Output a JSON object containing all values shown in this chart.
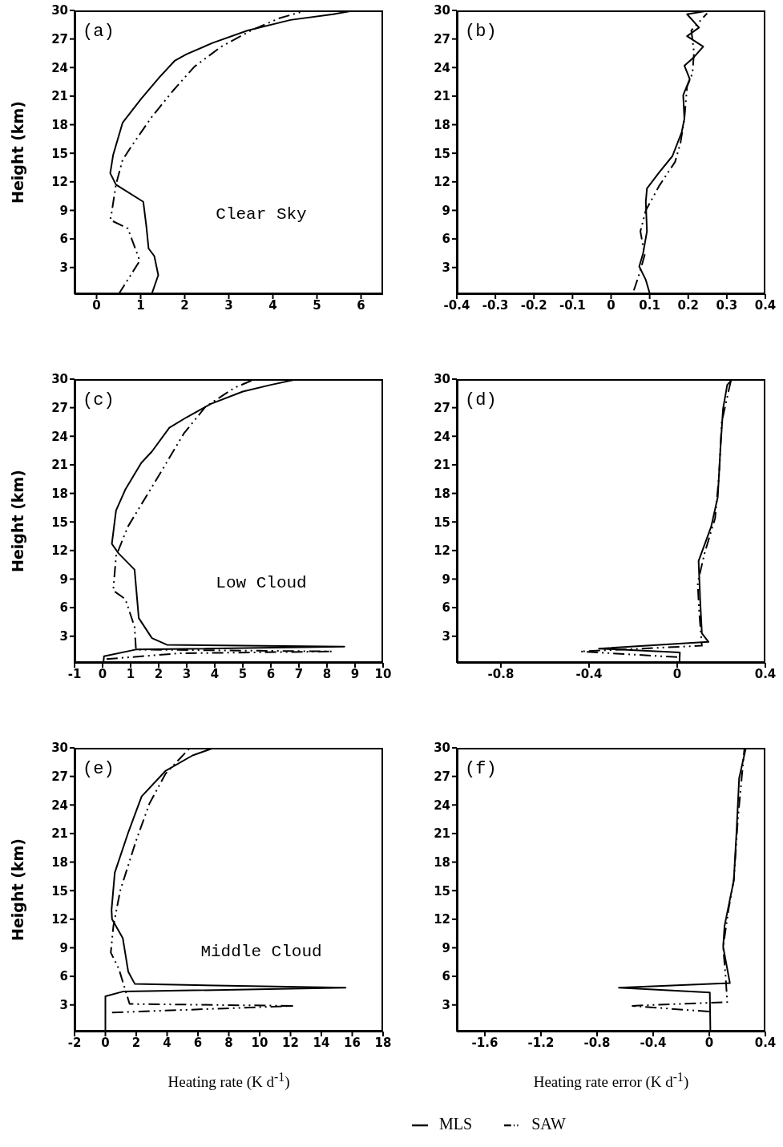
{
  "chart_data": [
    {
      "type": "line",
      "annotations": [
        "(a)",
        "Clear Sky"
      ],
      "ylabel": "Height (km)",
      "xlim": [
        -0.5,
        6.5
      ],
      "xticks": [
        0,
        1,
        2,
        3,
        4,
        5,
        6
      ],
      "ylim": [
        0.2,
        30
      ],
      "yticks": [
        3,
        6,
        9,
        12,
        15,
        18,
        21,
        24,
        27,
        30
      ],
      "series": [
        {
          "color": "#000000",
          "line_style": "solid",
          "x": [
            1.25,
            1.4,
            1.31,
            1.18,
            1.13,
            1.06,
            0.44,
            0.31,
            0.375,
            0.59,
            1.01,
            1.43,
            1.77,
            2.04,
            2.64,
            3.43,
            4.4,
            5.37,
            5.85
          ],
          "values": [
            0.2,
            2.2,
            4.2,
            5.0,
            7.3,
            9.9,
            11.7,
            12.9,
            14.8,
            18.2,
            20.7,
            23.0,
            24.7,
            25.4,
            26.6,
            27.9,
            29.0,
            29.6,
            30
          ]
        },
        {
          "color": "#000000",
          "line_style": "dashed",
          "x": [
            0.5,
            0.98,
            0.71,
            0.31,
            0.34,
            0.44,
            0.59,
            0.83,
            1.25,
            1.74,
            2.22,
            2.83,
            3.55,
            4.16,
            4.76
          ],
          "values": [
            0.2,
            3.7,
            7.1,
            8.0,
            8.7,
            11.7,
            14.3,
            16.0,
            18.8,
            21.6,
            24.1,
            26.2,
            28.0,
            29.2,
            30
          ]
        }
      ]
    },
    {
      "type": "line",
      "annotations": [
        "(b)"
      ],
      "xlim": [
        -0.4,
        0.4
      ],
      "xticks": [
        -0.4,
        -0.3,
        -0.2,
        -0.1,
        0,
        0.1,
        0.2,
        0.3,
        0.4
      ],
      "ylim": [
        0.2,
        30
      ],
      "yticks": [
        3,
        6,
        9,
        12,
        15,
        18,
        21,
        24,
        27,
        30
      ],
      "series": [
        {
          "color": "#000000",
          "line_style": "solid",
          "x": [
            0.1,
            0.09,
            0.073,
            0.083,
            0.093,
            0.09,
            0.093,
            0.125,
            0.159,
            0.183,
            0.19,
            0.187,
            0.204,
            0.19,
            0.215,
            0.239,
            0.197,
            0.228,
            0.197,
            0.256
          ],
          "values": [
            0.3,
            1.7,
            3.1,
            4.5,
            6.8,
            9.9,
            11.3,
            13.0,
            14.7,
            17.2,
            18.6,
            21.1,
            22.8,
            24.2,
            25.1,
            26.2,
            27.3,
            28.2,
            29.6,
            30
          ]
        },
        {
          "color": "#000000",
          "line_style": "dashed",
          "x": [
            0.059,
            0.073,
            0.087,
            0.076,
            0.09,
            0.125,
            0.166,
            0.18,
            0.19,
            0.197,
            0.211,
            0.215,
            0.208,
            0.249
          ],
          "values": [
            0.6,
            2.3,
            4.3,
            6.8,
            9.0,
            11.6,
            14.1,
            16.1,
            18.6,
            22.0,
            23.4,
            25.6,
            27.9,
            29.7
          ]
        }
      ]
    },
    {
      "type": "line",
      "annotations": [
        "(c)",
        "Low Cloud"
      ],
      "ylabel": "Height (km)",
      "xlim": [
        -1,
        10
      ],
      "xticks": [
        -1,
        0,
        1,
        2,
        3,
        4,
        5,
        6,
        7,
        8,
        9,
        10
      ],
      "ylim": [
        0.2,
        30
      ],
      "yticks": [
        3,
        6,
        9,
        12,
        15,
        18,
        21,
        24,
        27,
        30
      ],
      "series": [
        {
          "color": "#000000",
          "line_style": "solid",
          "x": [
            0.03,
            0.05,
            1.19,
            8.62,
            2.29,
            1.76,
            1.29,
            1.14,
            0.57,
            0.33,
            0.48,
            0.81,
            1.38,
            1.76,
            2.38,
            3.0,
            3.86,
            5.0,
            6.0,
            6.95
          ],
          "values": [
            0.2,
            0.9,
            1.6,
            1.9,
            2.1,
            2.8,
            4.9,
            10.0,
            11.7,
            12.7,
            16.2,
            18.4,
            21.2,
            22.4,
            24.9,
            26.0,
            27.4,
            28.7,
            29.4,
            30
          ]
        },
        {
          "color": "#000000",
          "line_style": "dashed",
          "x": [
            0.14,
            2.71,
            8.19,
            1.19,
            1.14,
            0.81,
            0.38,
            0.48,
            0.9,
            1.95,
            2.9,
            3.67,
            4.71,
            5.43
          ],
          "values": [
            0.6,
            1.2,
            1.4,
            1.6,
            4.0,
            6.9,
            7.8,
            11.4,
            14.5,
            19.6,
            24.3,
            27.1,
            29.1,
            30
          ]
        }
      ]
    },
    {
      "type": "line",
      "annotations": [
        "(d)"
      ],
      "xlim": [
        -1,
        0.4
      ],
      "xticks": [
        -0.8,
        -0.4,
        0,
        0.4
      ],
      "ylim": [
        0.2,
        30
      ],
      "yticks": [
        3,
        6,
        9,
        12,
        15,
        18,
        21,
        24,
        27,
        30
      ],
      "series": [
        {
          "color": "#000000",
          "line_style": "solid",
          "x": [
            0.01,
            0.012,
            -0.355,
            0.142,
            0.112,
            0.105,
            0.097,
            0.154,
            0.184,
            0.196,
            0.208,
            0.227,
            0.251
          ],
          "values": [
            0.2,
            1.3,
            1.7,
            2.4,
            3.3,
            6.4,
            10.9,
            14.5,
            17.6,
            22.7,
            26.9,
            29.4,
            30
          ]
        },
        {
          "color": "#000000",
          "line_style": "dashed",
          "x": [
            0,
            -0.44,
            0.112,
            0.099,
            0.093,
            0.124,
            0.172,
            0.19,
            0.202,
            0.245
          ],
          "values": [
            0.8,
            1.4,
            2.0,
            5.8,
            8.6,
            11.7,
            15.4,
            19.9,
            25.5,
            30
          ]
        }
      ]
    },
    {
      "type": "line",
      "annotations": [
        "(e)",
        "Middle Cloud"
      ],
      "ylabel": "Height (km)",
      "xlabel": "Heating rate (K d$^{-1}$)",
      "xlim": [
        -2,
        18
      ],
      "xticks": [
        -2,
        0,
        2,
        4,
        6,
        8,
        10,
        12,
        14,
        16,
        18
      ],
      "ylim": [
        0.2,
        30
      ],
      "yticks": [
        3,
        6,
        9,
        12,
        15,
        18,
        21,
        24,
        27,
        30
      ],
      "series": [
        {
          "color": "#000000",
          "line_style": "solid",
          "x": [
            0,
            0,
            1.13,
            15.57,
            1.91,
            1.48,
            1.13,
            0.43,
            0.4,
            0.61,
            1.48,
            2.35,
            3.91,
            5.65,
            7.04
          ],
          "values": [
            0.2,
            3.9,
            4.4,
            4.8,
            5.2,
            6.5,
            10.0,
            12.0,
            13.0,
            16.9,
            21.1,
            24.9,
            27.6,
            29.2,
            30
          ]
        },
        {
          "color": "#000000",
          "line_style": "dashed",
          "x": [
            0.43,
            12.26,
            1.57,
            0.87,
            0.35,
            0.52,
            0.96,
            2.0,
            2.87,
            3.91,
            5.48
          ],
          "values": [
            2.2,
            2.9,
            3.1,
            6.8,
            8.5,
            11.3,
            15.0,
            20.3,
            24.2,
            27.3,
            30
          ]
        }
      ]
    },
    {
      "type": "line",
      "annotations": [
        "(f)"
      ],
      "xlabel": "Heating rate error (K d$^{-1}$)",
      "legend": "bottom",
      "xlim": [
        -1.8,
        0.4
      ],
      "xticks": [
        -1.6,
        -1.2,
        -0.8,
        -0.4,
        0,
        0.4
      ],
      "ylim": [
        0.2,
        30
      ],
      "yticks": [
        3,
        6,
        9,
        12,
        15,
        18,
        21,
        24,
        27,
        30
      ],
      "series": [
        {
          "name": "MLS",
          "color": "#000000",
          "line_style": "solid",
          "x": [
            0.008,
            0.004,
            -0.644,
            0.147,
            0.099,
            0.109,
            0.175,
            0.194,
            0.213,
            0.261
          ],
          "values": [
            0.2,
            4.3,
            4.8,
            5.3,
            9.1,
            11.3,
            16.1,
            21.1,
            26.8,
            30
          ]
        },
        {
          "name": "SAW",
          "color": "#000000",
          "line_style": "dashed",
          "x": [
            0,
            -0.558,
            0.128,
            0.118,
            0.099,
            0.137,
            0.175,
            0.204,
            0.251
          ],
          "values": [
            2.3,
            2.9,
            3.3,
            5.7,
            9.1,
            13,
            16.1,
            22.5,
            30
          ]
        }
      ]
    }
  ]
}
